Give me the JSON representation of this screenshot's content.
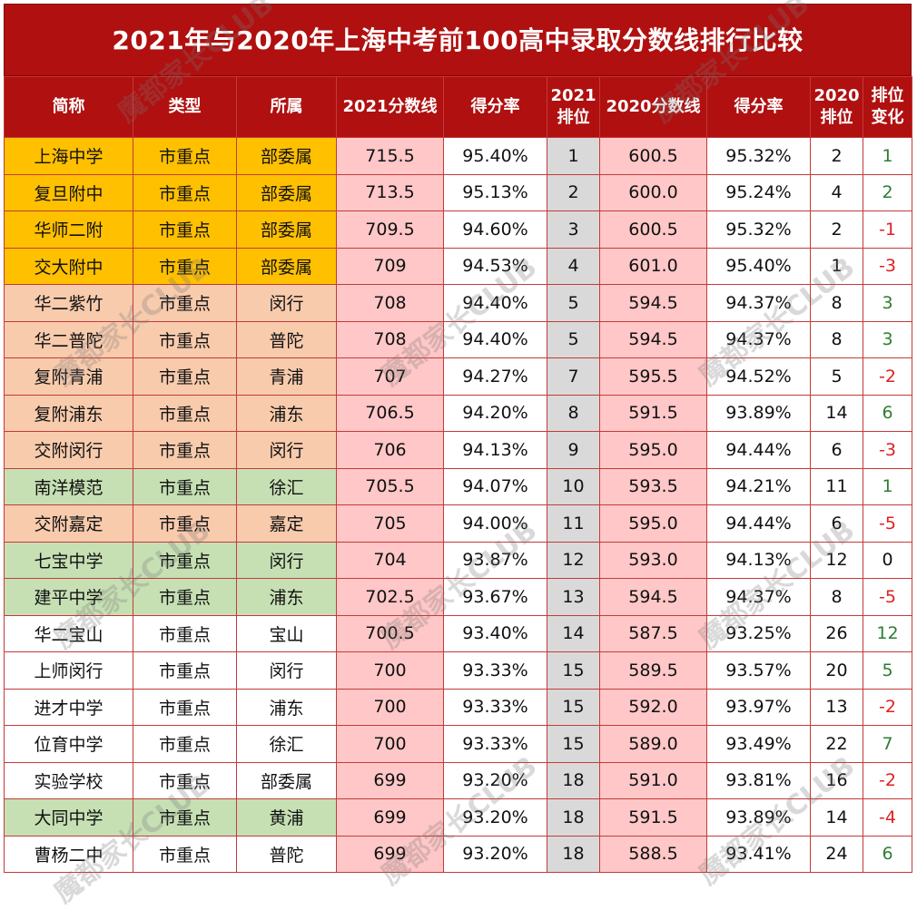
{
  "title": "2021年与2020年上海中考前100高中录取分数线排行比较",
  "watermark": "魔都家长CLUB",
  "colors": {
    "header_bg": "#b01010",
    "orange": "#ffc000",
    "peach": "#f8cbad",
    "green": "#c6e0b4",
    "white": "#ffffff",
    "pink_score": "#ffc7c7",
    "gray_rank": "#d9d9d9",
    "pos_change": "#2e7d32",
    "neg_change": "#e02020"
  },
  "headers": {
    "name": "简称",
    "type": "类型",
    "district": "所属",
    "score2021": "2021分数线",
    "rate2021": "得分率",
    "rank2021": "2021\n排位",
    "score2020": "2020分数线",
    "rate2020": "得分率",
    "rank2020": "2020\n排位",
    "change": "排位\n变化"
  },
  "rows": [
    {
      "name": "上海中学",
      "type": "市重点",
      "district": "部委属",
      "score2021": "715.5",
      "rate2021": "95.40%",
      "rank2021": "1",
      "score2020": "600.5",
      "rate2020": "95.32%",
      "rank2020": "2",
      "change": "1",
      "color": "orange"
    },
    {
      "name": "复旦附中",
      "type": "市重点",
      "district": "部委属",
      "score2021": "713.5",
      "rate2021": "95.13%",
      "rank2021": "2",
      "score2020": "600.0",
      "rate2020": "95.24%",
      "rank2020": "4",
      "change": "2",
      "color": "orange"
    },
    {
      "name": "华师二附",
      "type": "市重点",
      "district": "部委属",
      "score2021": "709.5",
      "rate2021": "94.60%",
      "rank2021": "3",
      "score2020": "600.5",
      "rate2020": "95.32%",
      "rank2020": "2",
      "change": "-1",
      "color": "orange"
    },
    {
      "name": "交大附中",
      "type": "市重点",
      "district": "部委属",
      "score2021": "709",
      "rate2021": "94.53%",
      "rank2021": "4",
      "score2020": "601.0",
      "rate2020": "95.40%",
      "rank2020": "1",
      "change": "-3",
      "color": "orange"
    },
    {
      "name": "华二紫竹",
      "type": "市重点",
      "district": "闵行",
      "score2021": "708",
      "rate2021": "94.40%",
      "rank2021": "5",
      "score2020": "594.5",
      "rate2020": "94.37%",
      "rank2020": "8",
      "change": "3",
      "color": "peach"
    },
    {
      "name": "华二普陀",
      "type": "市重点",
      "district": "普陀",
      "score2021": "708",
      "rate2021": "94.40%",
      "rank2021": "5",
      "score2020": "594.5",
      "rate2020": "94.37%",
      "rank2020": "8",
      "change": "3",
      "color": "peach"
    },
    {
      "name": "复附青浦",
      "type": "市重点",
      "district": "青浦",
      "score2021": "707",
      "rate2021": "94.27%",
      "rank2021": "7",
      "score2020": "595.5",
      "rate2020": "94.52%",
      "rank2020": "5",
      "change": "-2",
      "color": "peach"
    },
    {
      "name": "复附浦东",
      "type": "市重点",
      "district": "浦东",
      "score2021": "706.5",
      "rate2021": "94.20%",
      "rank2021": "8",
      "score2020": "591.5",
      "rate2020": "93.89%",
      "rank2020": "14",
      "change": "6",
      "color": "peach"
    },
    {
      "name": "交附闵行",
      "type": "市重点",
      "district": "闵行",
      "score2021": "706",
      "rate2021": "94.13%",
      "rank2021": "9",
      "score2020": "595.0",
      "rate2020": "94.44%",
      "rank2020": "6",
      "change": "-3",
      "color": "peach"
    },
    {
      "name": "南洋模范",
      "type": "市重点",
      "district": "徐汇",
      "score2021": "705.5",
      "rate2021": "94.07%",
      "rank2021": "10",
      "score2020": "593.5",
      "rate2020": "94.21%",
      "rank2020": "11",
      "change": "1",
      "color": "green"
    },
    {
      "name": "交附嘉定",
      "type": "市重点",
      "district": "嘉定",
      "score2021": "705",
      "rate2021": "94.00%",
      "rank2021": "11",
      "score2020": "595.0",
      "rate2020": "94.44%",
      "rank2020": "6",
      "change": "-5",
      "color": "peach"
    },
    {
      "name": "七宝中学",
      "type": "市重点",
      "district": "闵行",
      "score2021": "704",
      "rate2021": "93.87%",
      "rank2021": "12",
      "score2020": "593.0",
      "rate2020": "94.13%",
      "rank2020": "12",
      "change": "0",
      "color": "green"
    },
    {
      "name": "建平中学",
      "type": "市重点",
      "district": "浦东",
      "score2021": "702.5",
      "rate2021": "93.67%",
      "rank2021": "13",
      "score2020": "594.5",
      "rate2020": "94.37%",
      "rank2020": "8",
      "change": "-5",
      "color": "green"
    },
    {
      "name": "华二宝山",
      "type": "市重点",
      "district": "宝山",
      "score2021": "700.5",
      "rate2021": "93.40%",
      "rank2021": "14",
      "score2020": "587.5",
      "rate2020": "93.25%",
      "rank2020": "26",
      "change": "12",
      "color": "white"
    },
    {
      "name": "上师闵行",
      "type": "市重点",
      "district": "闵行",
      "score2021": "700",
      "rate2021": "93.33%",
      "rank2021": "15",
      "score2020": "589.5",
      "rate2020": "93.57%",
      "rank2020": "20",
      "change": "5",
      "color": "white"
    },
    {
      "name": "进才中学",
      "type": "市重点",
      "district": "浦东",
      "score2021": "700",
      "rate2021": "93.33%",
      "rank2021": "15",
      "score2020": "592.0",
      "rate2020": "93.97%",
      "rank2020": "13",
      "change": "-2",
      "color": "white"
    },
    {
      "name": "位育中学",
      "type": "市重点",
      "district": "徐汇",
      "score2021": "700",
      "rate2021": "93.33%",
      "rank2021": "15",
      "score2020": "589.0",
      "rate2020": "93.49%",
      "rank2020": "22",
      "change": "7",
      "color": "white"
    },
    {
      "name": "实验学校",
      "type": "市重点",
      "district": "部委属",
      "score2021": "699",
      "rate2021": "93.20%",
      "rank2021": "18",
      "score2020": "591.0",
      "rate2020": "93.81%",
      "rank2020": "16",
      "change": "-2",
      "color": "white"
    },
    {
      "name": "大同中学",
      "type": "市重点",
      "district": "黄浦",
      "score2021": "699",
      "rate2021": "93.20%",
      "rank2021": "18",
      "score2020": "591.5",
      "rate2020": "93.89%",
      "rank2020": "14",
      "change": "-4",
      "color": "green"
    },
    {
      "name": "曹杨二中",
      "type": "市重点",
      "district": "普陀",
      "score2021": "699",
      "rate2021": "93.20%",
      "rank2021": "18",
      "score2020": "588.5",
      "rate2020": "93.41%",
      "rank2020": "24",
      "change": "6",
      "color": "white"
    }
  ]
}
